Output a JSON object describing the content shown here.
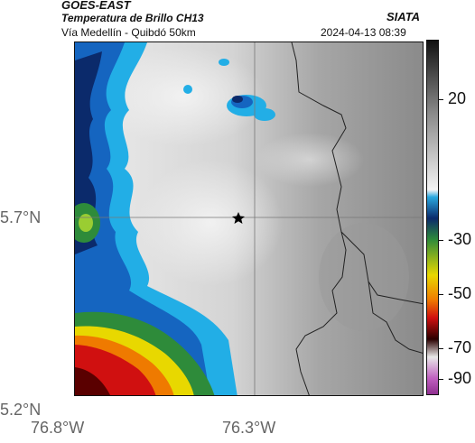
{
  "header": {
    "satellite": "GOES-EAST",
    "product": "Temperatura de Brillo CH13",
    "region": "Vía Medellín - Quibdó 50km",
    "organization": "SIATA",
    "timestamp": "2024-04-13 08:39"
  },
  "axes": {
    "lat_labels": [
      "5.7°N",
      "5.2°N"
    ],
    "lon_labels": [
      "76.8°W",
      "76.3°W"
    ]
  },
  "colorbar": {
    "ticks": [
      "20",
      "-30",
      "-50",
      "-70",
      "-90"
    ]
  },
  "map": {
    "marker": "star-icon",
    "colors": {
      "cold_deep": "#0b2a6b",
      "cold_blue": "#1565c0",
      "cyan": "#22aee6",
      "green": "#2e8b3a",
      "yellow": "#e8d800",
      "orange": "#ef7a00",
      "red": "#d01010",
      "dark_red": "#5a0000",
      "warm_gray_light": "#e6e6e6",
      "warm_gray_dark": "#8c8c8c"
    }
  }
}
